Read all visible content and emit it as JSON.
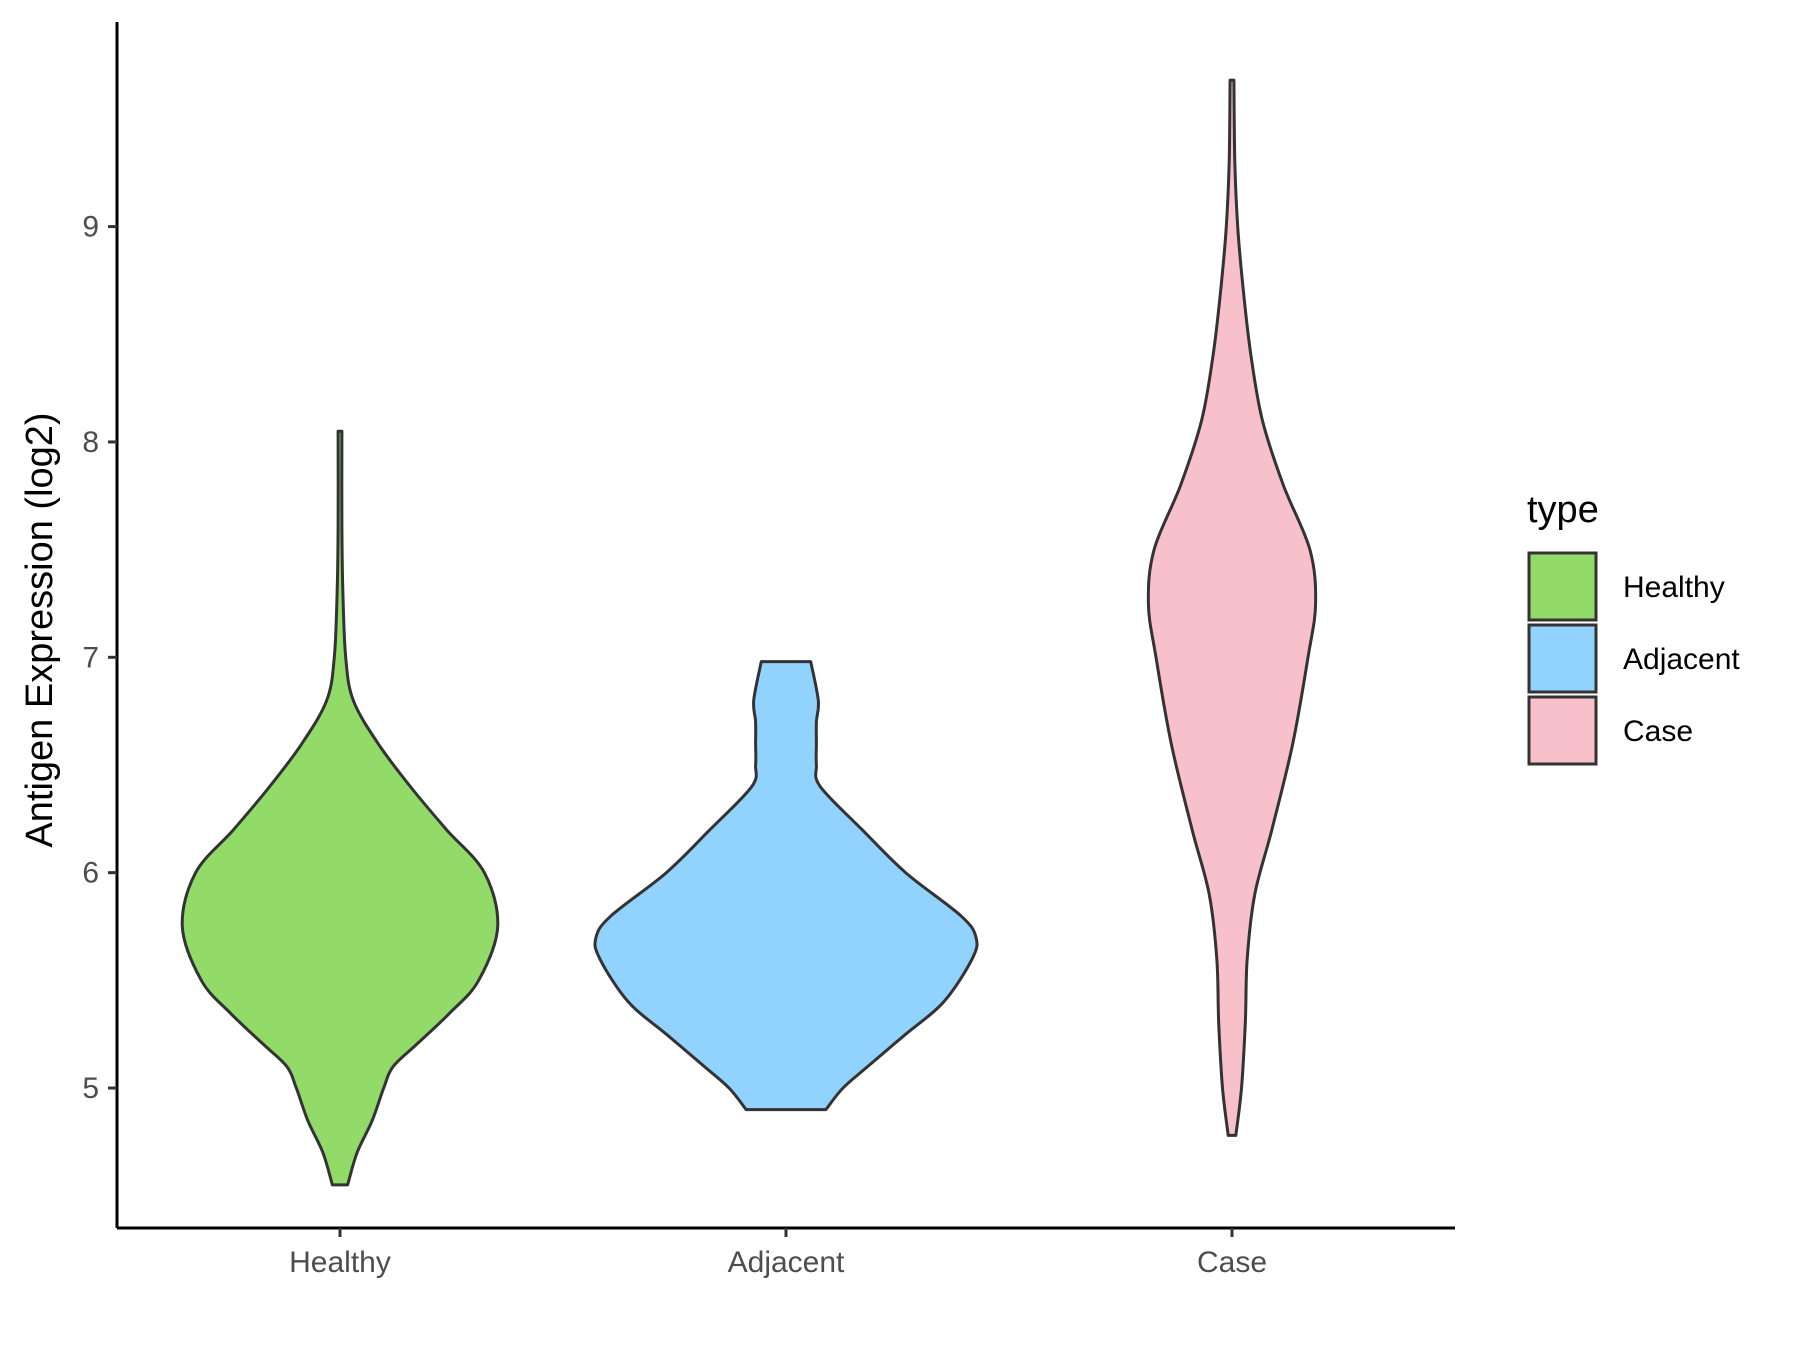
{
  "chart_data": {
    "type": "violin",
    "categories": [
      "Healthy",
      "Adjacent",
      "Case"
    ],
    "ylabel": "Antigen Expression (log2)",
    "xlabel": "",
    "ylim": [
      4.35,
      9.95
    ],
    "yticks": [
      5,
      6,
      7,
      8,
      9
    ],
    "grid": false,
    "legend": {
      "title": "type",
      "position": "right",
      "entries": [
        "Healthy",
        "Adjacent",
        "Case"
      ]
    },
    "colors": {
      "Healthy": "#93DB69",
      "Adjacent": "#92D2FF",
      "Case": "#F7C0CB",
      "outline": "#333333"
    },
    "series": [
      {
        "category": "Healthy",
        "min": 4.55,
        "max": 8.05,
        "density_profile": [
          [
            4.55,
            0.04
          ],
          [
            4.7,
            0.09
          ],
          [
            4.85,
            0.17
          ],
          [
            5.0,
            0.23
          ],
          [
            5.1,
            0.28
          ],
          [
            5.2,
            0.4
          ],
          [
            5.35,
            0.58
          ],
          [
            5.5,
            0.73
          ],
          [
            5.75,
            0.83
          ],
          [
            6.0,
            0.76
          ],
          [
            6.2,
            0.56
          ],
          [
            6.4,
            0.37
          ],
          [
            6.6,
            0.2
          ],
          [
            6.8,
            0.07
          ],
          [
            7.0,
            0.03
          ],
          [
            7.3,
            0.015
          ],
          [
            7.6,
            0.01
          ],
          [
            8.05,
            0.01
          ]
        ]
      },
      {
        "category": "Adjacent",
        "min": 4.9,
        "max": 6.98,
        "density_profile": [
          [
            4.9,
            0.21
          ],
          [
            5.0,
            0.3
          ],
          [
            5.1,
            0.43
          ],
          [
            5.25,
            0.63
          ],
          [
            5.4,
            0.83
          ],
          [
            5.6,
            0.98
          ],
          [
            5.7,
            1.0
          ],
          [
            5.8,
            0.92
          ],
          [
            6.0,
            0.63
          ],
          [
            6.2,
            0.4
          ],
          [
            6.4,
            0.18
          ],
          [
            6.5,
            0.16
          ],
          [
            6.6,
            0.16
          ],
          [
            6.7,
            0.16
          ],
          [
            6.8,
            0.17
          ],
          [
            6.98,
            0.13
          ]
        ]
      },
      {
        "category": "Case",
        "min": 4.78,
        "max": 9.68,
        "density_profile": [
          [
            4.78,
            0.02
          ],
          [
            5.0,
            0.05
          ],
          [
            5.3,
            0.07
          ],
          [
            5.6,
            0.08
          ],
          [
            5.9,
            0.12
          ],
          [
            6.2,
            0.21
          ],
          [
            6.6,
            0.32
          ],
          [
            7.0,
            0.4
          ],
          [
            7.25,
            0.44
          ],
          [
            7.5,
            0.41
          ],
          [
            7.8,
            0.27
          ],
          [
            8.1,
            0.16
          ],
          [
            8.4,
            0.1
          ],
          [
            8.7,
            0.06
          ],
          [
            9.0,
            0.03
          ],
          [
            9.3,
            0.015
          ],
          [
            9.68,
            0.01
          ]
        ]
      }
    ]
  }
}
